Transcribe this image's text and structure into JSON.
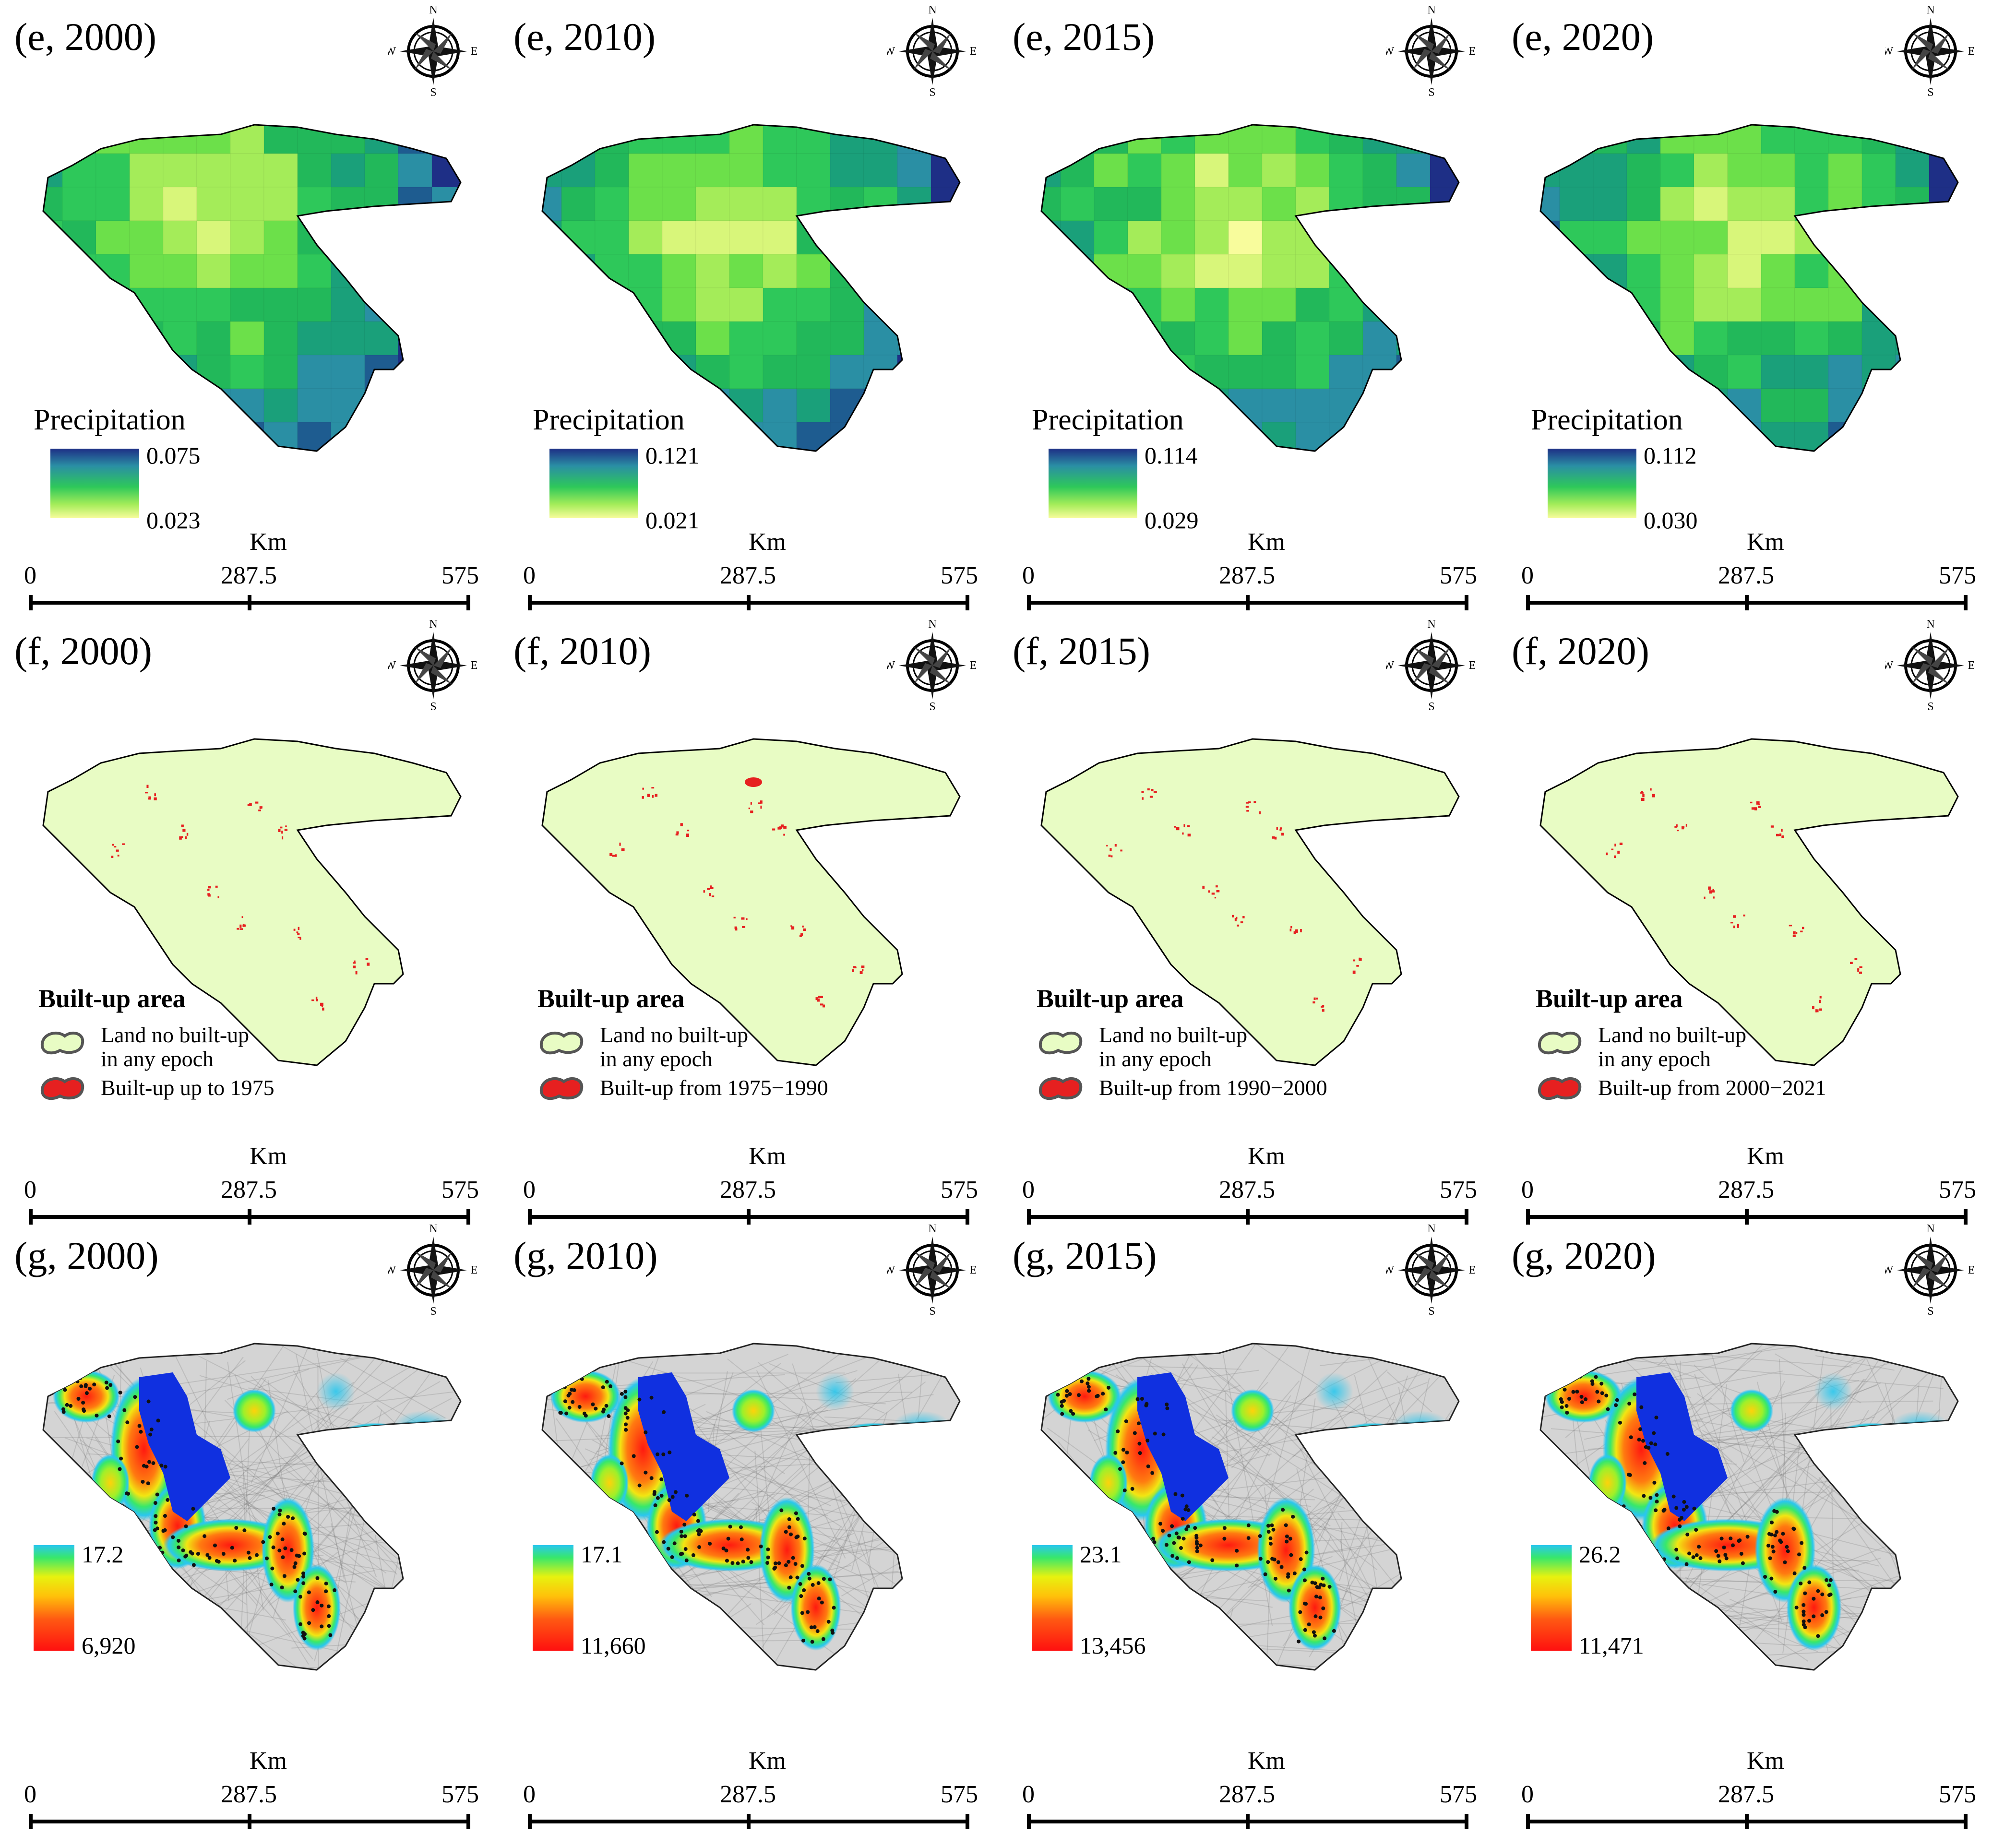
{
  "compass": {
    "n": "N",
    "s": "S",
    "e": "E",
    "w": "W"
  },
  "scale": {
    "unit": "Km",
    "ticks": [
      "0",
      "287.5",
      "575"
    ]
  },
  "rows": [
    {
      "id": "e",
      "legend_title": "Precipitation",
      "panels": [
        {
          "label": "(e, 2000)",
          "max": "0.075",
          "min": "0.023"
        },
        {
          "label": "(e, 2010)",
          "max": "0.121",
          "min": "0.021"
        },
        {
          "label": "(e, 2015)",
          "max": "0.114",
          "min": "0.029"
        },
        {
          "label": "(e, 2020)",
          "max": "0.112",
          "min": "0.030"
        }
      ]
    },
    {
      "id": "f",
      "legend_title": "Built-up area",
      "no_built_label_1": "Land no built-up",
      "no_built_label_2": "in any epoch",
      "panels": [
        {
          "label": "(f, 2000)",
          "built_label": "Built-up up to 1975"
        },
        {
          "label": "(f, 2010)",
          "built_label": "Built-up from 1975−1990"
        },
        {
          "label": "(f, 2015)",
          "built_label": "Built-up from 1990−2000"
        },
        {
          "label": "(f, 2020)",
          "built_label": "Built-up from 2000−2021"
        }
      ]
    },
    {
      "id": "g",
      "panels": [
        {
          "label": "(g, 2000)",
          "top": "17.2",
          "bottom": "6,920"
        },
        {
          "label": "(g, 2010)",
          "top": "17.1",
          "bottom": "11,660"
        },
        {
          "label": "(g, 2015)",
          "top": "23.1",
          "bottom": "13,456"
        },
        {
          "label": "(g, 2020)",
          "top": "26.2",
          "bottom": "11,471"
        }
      ]
    }
  ],
  "colors": {
    "precip_high": "#1e2f86",
    "precip_mid": "#2ec85a",
    "precip_low": "#f8fc9c",
    "nonbuilt_land": "#e8fcc4",
    "built_up": "#e62020",
    "water": "#1030e0",
    "terrain": "#d4d4d4",
    "density_low": "#29c7ee",
    "density_high": "#ff1010"
  }
}
